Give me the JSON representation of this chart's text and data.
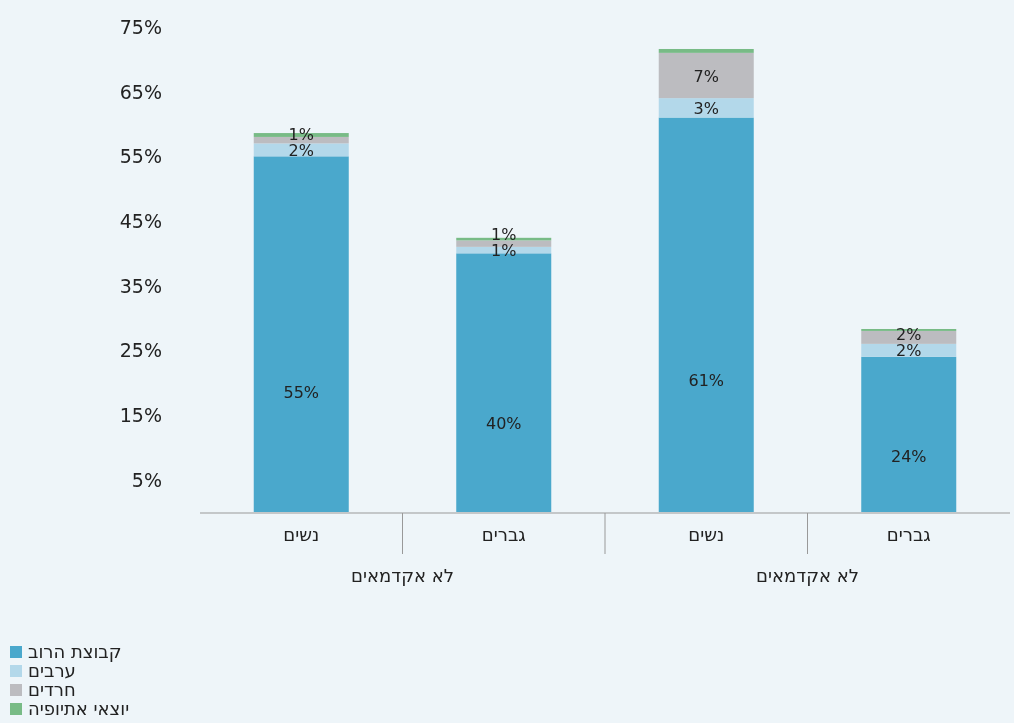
{
  "chart_data": {
    "type": "bar",
    "stacked": true,
    "categories": [
      "נשים",
      "גברים",
      "נשים",
      "גברים"
    ],
    "series": [
      {
        "name": "קבוצת הרוב",
        "color": "#4aa8cc",
        "values": [
          55,
          40,
          61,
          24
        ],
        "value_labels": [
          "55%",
          "40%",
          "61%",
          "24%"
        ]
      },
      {
        "name": "ערבים",
        "color": "#b3d8ea",
        "values": [
          2,
          1,
          3,
          2
        ],
        "value_labels": [
          "2%",
          "1%",
          "3%",
          "2%"
        ]
      },
      {
        "name": "חרדים",
        "color": "#bcbcc0",
        "values": [
          1,
          1,
          7,
          2
        ],
        "value_labels": [
          "1%",
          "1%",
          "7%",
          "2%"
        ]
      },
      {
        "name": "יוצאי אתיופיה",
        "color": "#78bb86",
        "values": [
          0.6,
          0.4,
          0.6,
          0.3
        ]
      }
    ],
    "ylim": [
      0,
      75
    ],
    "yticks": [
      {
        "value": 5,
        "label": "5%"
      },
      {
        "value": 15,
        "label": "15%"
      },
      {
        "value": 25,
        "label": "25%"
      },
      {
        "value": 35,
        "label": "35%"
      },
      {
        "value": 45,
        "label": "45%"
      },
      {
        "value": 55,
        "label": "55%"
      },
      {
        "value": 65,
        "label": "65%"
      },
      {
        "value": 75,
        "label": "75%"
      }
    ],
    "annotations": [
      "לא אקדמאים",
      "לא אקדמאים"
    ],
    "legend": "bottom left"
  }
}
